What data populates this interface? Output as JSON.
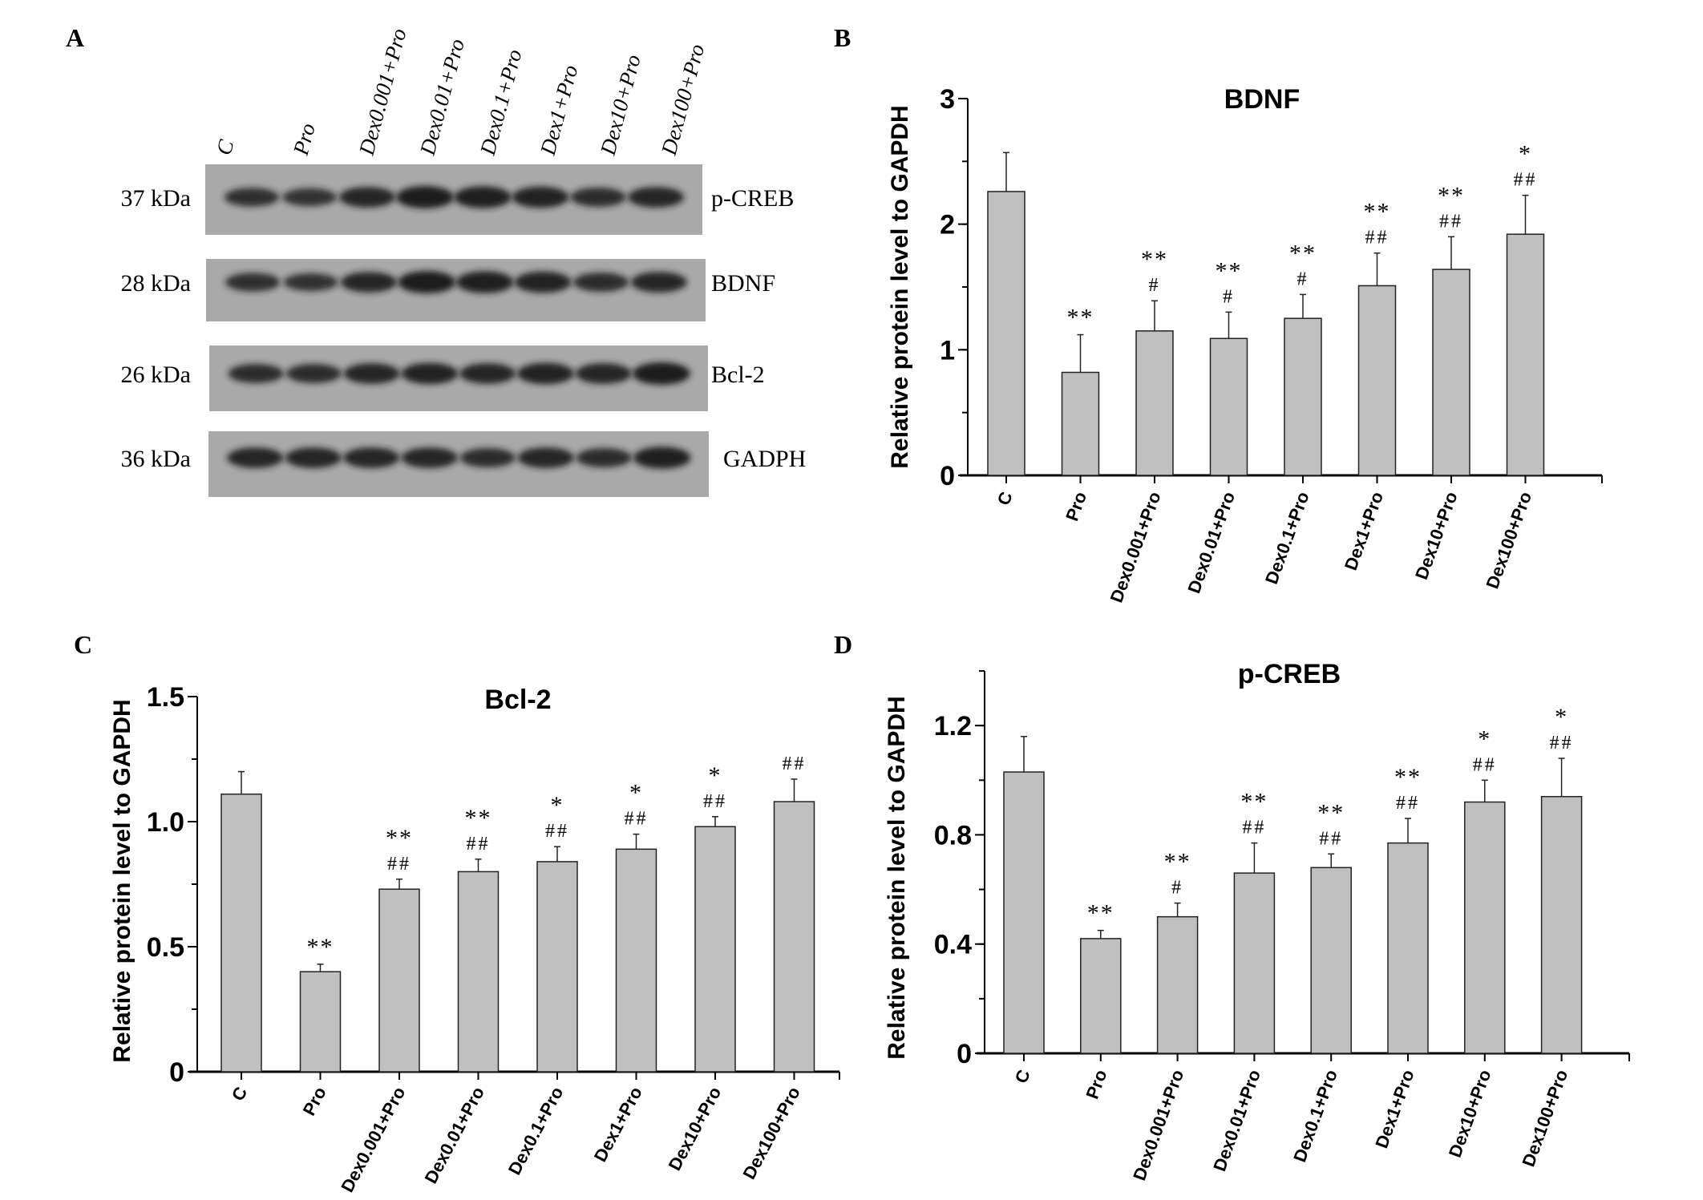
{
  "panel_labels": {
    "a": "A",
    "b": "B",
    "c": "C",
    "d": "D"
  },
  "blot": {
    "lanes": [
      "C",
      "Pro",
      "Dex0.001+Pro",
      "Dex0.01+Pro",
      "Dex0.1+Pro",
      "Dex1+Pro",
      "Dex10+Pro",
      "Dex100+Pro"
    ],
    "rows": [
      {
        "kda": "37 kDa",
        "protein": "p-CREB"
      },
      {
        "kda": "28 kDa",
        "protein": "BDNF"
      },
      {
        "kda": "26 kDa",
        "protein": "Bcl-2"
      },
      {
        "kda": "36 kDa",
        "protein": "GADPH"
      }
    ]
  },
  "chart_data": [
    {
      "panel": "B",
      "type": "bar",
      "title": "BDNF",
      "ylabel": "Relative protein level to GAPDH",
      "xlabel": "",
      "categories": [
        "C",
        "Pro",
        "Dex0.001+Pro",
        "Dex0.01+Pro",
        "Dex0.1+Pro",
        "Dex1+Pro",
        "Dex10+Pro",
        "Dex100+Pro"
      ],
      "values": [
        2.26,
        0.82,
        1.15,
        1.09,
        1.25,
        1.51,
        1.64,
        1.92
      ],
      "errors": [
        0.31,
        0.3,
        0.24,
        0.21,
        0.19,
        0.26,
        0.26,
        0.31
      ],
      "stars": [
        "",
        "**",
        "**",
        "**",
        "**",
        "**",
        "**",
        "*"
      ],
      "hashes": [
        "",
        "",
        "#",
        "#",
        "#",
        "##",
        "##",
        "##"
      ],
      "ylim": [
        0,
        3
      ],
      "yticks": [
        0,
        1,
        2,
        3
      ],
      "ytick_labels": [
        "0",
        "1",
        "2",
        "3"
      ],
      "minor_step": 0.5
    },
    {
      "panel": "C",
      "type": "bar",
      "title": "Bcl-2",
      "ylabel": "Relative protein level to GAPDH",
      "xlabel": "",
      "categories": [
        "C",
        "Pro",
        "Dex0.001+Pro",
        "Dex0.01+Pro",
        "Dex0.1+Pro",
        "Dex1+Pro",
        "Dex10+Pro",
        "Dex100+Pro"
      ],
      "values": [
        1.11,
        0.4,
        0.73,
        0.8,
        0.84,
        0.89,
        0.98,
        1.08
      ],
      "errors": [
        0.09,
        0.03,
        0.04,
        0.05,
        0.06,
        0.06,
        0.04,
        0.09
      ],
      "stars": [
        "",
        "**",
        "**",
        "**",
        "*",
        "*",
        "*",
        ""
      ],
      "hashes": [
        "",
        "",
        "##",
        "##",
        "##",
        "##",
        "##",
        "##"
      ],
      "ylim": [
        0,
        1.5
      ],
      "yticks": [
        0,
        0.5,
        1.0,
        1.5
      ],
      "ytick_labels": [
        "0",
        "0.5",
        "1.0",
        "1.5"
      ],
      "minor_step": 0.25
    },
    {
      "panel": "D",
      "type": "bar",
      "title": "p-CREB",
      "ylabel": "Relative protein level to GAPDH",
      "xlabel": "",
      "categories": [
        "C",
        "Pro",
        "Dex0.001+Pro",
        "Dex0.01+Pro",
        "Dex0.1+Pro",
        "Dex1+Pro",
        "Dex10+Pro",
        "Dex100+Pro"
      ],
      "values": [
        1.03,
        0.42,
        0.5,
        0.66,
        0.68,
        0.77,
        0.92,
        0.94
      ],
      "errors": [
        0.13,
        0.03,
        0.05,
        0.11,
        0.05,
        0.09,
        0.08,
        0.14
      ],
      "stars": [
        "",
        "**",
        "**",
        "**",
        "**",
        "**",
        "*",
        "*"
      ],
      "hashes": [
        "",
        "",
        "#",
        "##",
        "##",
        "##",
        "##",
        "##"
      ],
      "ylim": [
        0,
        1.4
      ],
      "yticks": [
        0,
        0.4,
        0.8,
        1.2
      ],
      "ytick_labels": [
        "0",
        "0.4",
        "0.8",
        "1.2"
      ],
      "minor_step": 0.2
    }
  ],
  "colors": {
    "bar_fill": "#c0c0c0",
    "bar_stroke": "#222222",
    "blot_bg": "#a9a9a9",
    "band": "#1c1c1c"
  }
}
